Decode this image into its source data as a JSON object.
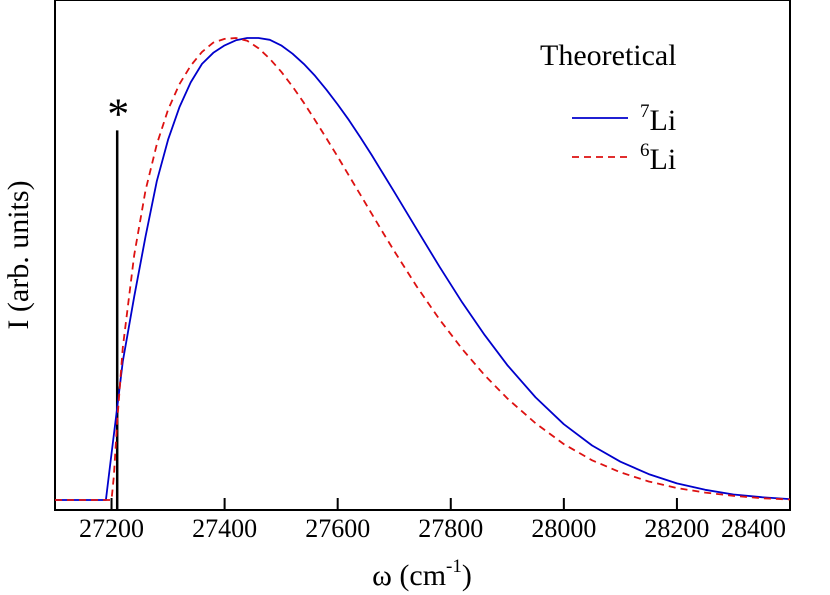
{
  "chart_data": {
    "type": "line",
    "title": "",
    "xlabel": "ω (cm",
    "xlabel_sup": "-1",
    "xlabel_close": ")",
    "ylabel": "I (arb. units)",
    "xlim": [
      27100,
      28400
    ],
    "ylim": [
      0,
      1.0
    ],
    "x_ticks": [
      27200,
      27400,
      27600,
      27800,
      28000,
      28200,
      28400
    ],
    "legend_title": "Theoretical",
    "annotation": "*",
    "marker_line": {
      "x": 27210,
      "y_top": 0.8
    },
    "series": [
      {
        "name": "7Li",
        "label_sup": "7",
        "label_text": "Li",
        "color": "#0000cc",
        "dash": "solid",
        "x": [
          27100,
          27190,
          27192,
          27200,
          27210,
          27220,
          27240,
          27260,
          27280,
          27300,
          27320,
          27340,
          27360,
          27380,
          27400,
          27420,
          27440,
          27460,
          27480,
          27500,
          27520,
          27540,
          27560,
          27580,
          27600,
          27620,
          27640,
          27660,
          27680,
          27700,
          27740,
          27780,
          27820,
          27860,
          27900,
          27950,
          28000,
          28050,
          28100,
          28150,
          28200,
          28250,
          28300,
          28350,
          28400
        ],
        "y": [
          0.0,
          0.0,
          0.02,
          0.1,
          0.2,
          0.3,
          0.44,
          0.57,
          0.69,
          0.78,
          0.85,
          0.904,
          0.944,
          0.968,
          0.984,
          0.995,
          1.0,
          1.0,
          0.996,
          0.984,
          0.966,
          0.944,
          0.918,
          0.888,
          0.856,
          0.822,
          0.785,
          0.747,
          0.707,
          0.667,
          0.586,
          0.505,
          0.428,
          0.357,
          0.292,
          0.222,
          0.164,
          0.118,
          0.083,
          0.056,
          0.036,
          0.022,
          0.012,
          0.006,
          0.002
        ]
      },
      {
        "name": "6Li",
        "label_sup": "6",
        "label_text": "Li",
        "color": "#dd1111",
        "dash": "dashed",
        "x": [
          27100,
          27200,
          27204,
          27210,
          27220,
          27240,
          27260,
          27280,
          27300,
          27320,
          27340,
          27360,
          27380,
          27400,
          27420,
          27440,
          27460,
          27480,
          27500,
          27520,
          27540,
          27560,
          27580,
          27600,
          27620,
          27640,
          27660,
          27680,
          27700,
          27740,
          27780,
          27820,
          27860,
          27900,
          27950,
          28000,
          28050,
          28100,
          28150,
          28200,
          28250,
          28300,
          28350,
          28400
        ],
        "y": [
          0.0,
          0.0,
          0.05,
          0.17,
          0.33,
          0.53,
          0.67,
          0.77,
          0.845,
          0.9,
          0.94,
          0.97,
          0.99,
          0.998,
          1.0,
          0.994,
          0.978,
          0.955,
          0.927,
          0.895,
          0.86,
          0.822,
          0.783,
          0.743,
          0.702,
          0.661,
          0.62,
          0.579,
          0.539,
          0.462,
          0.391,
          0.327,
          0.27,
          0.22,
          0.166,
          0.121,
          0.086,
          0.06,
          0.04,
          0.026,
          0.016,
          0.009,
          0.004,
          0.001
        ]
      }
    ]
  }
}
